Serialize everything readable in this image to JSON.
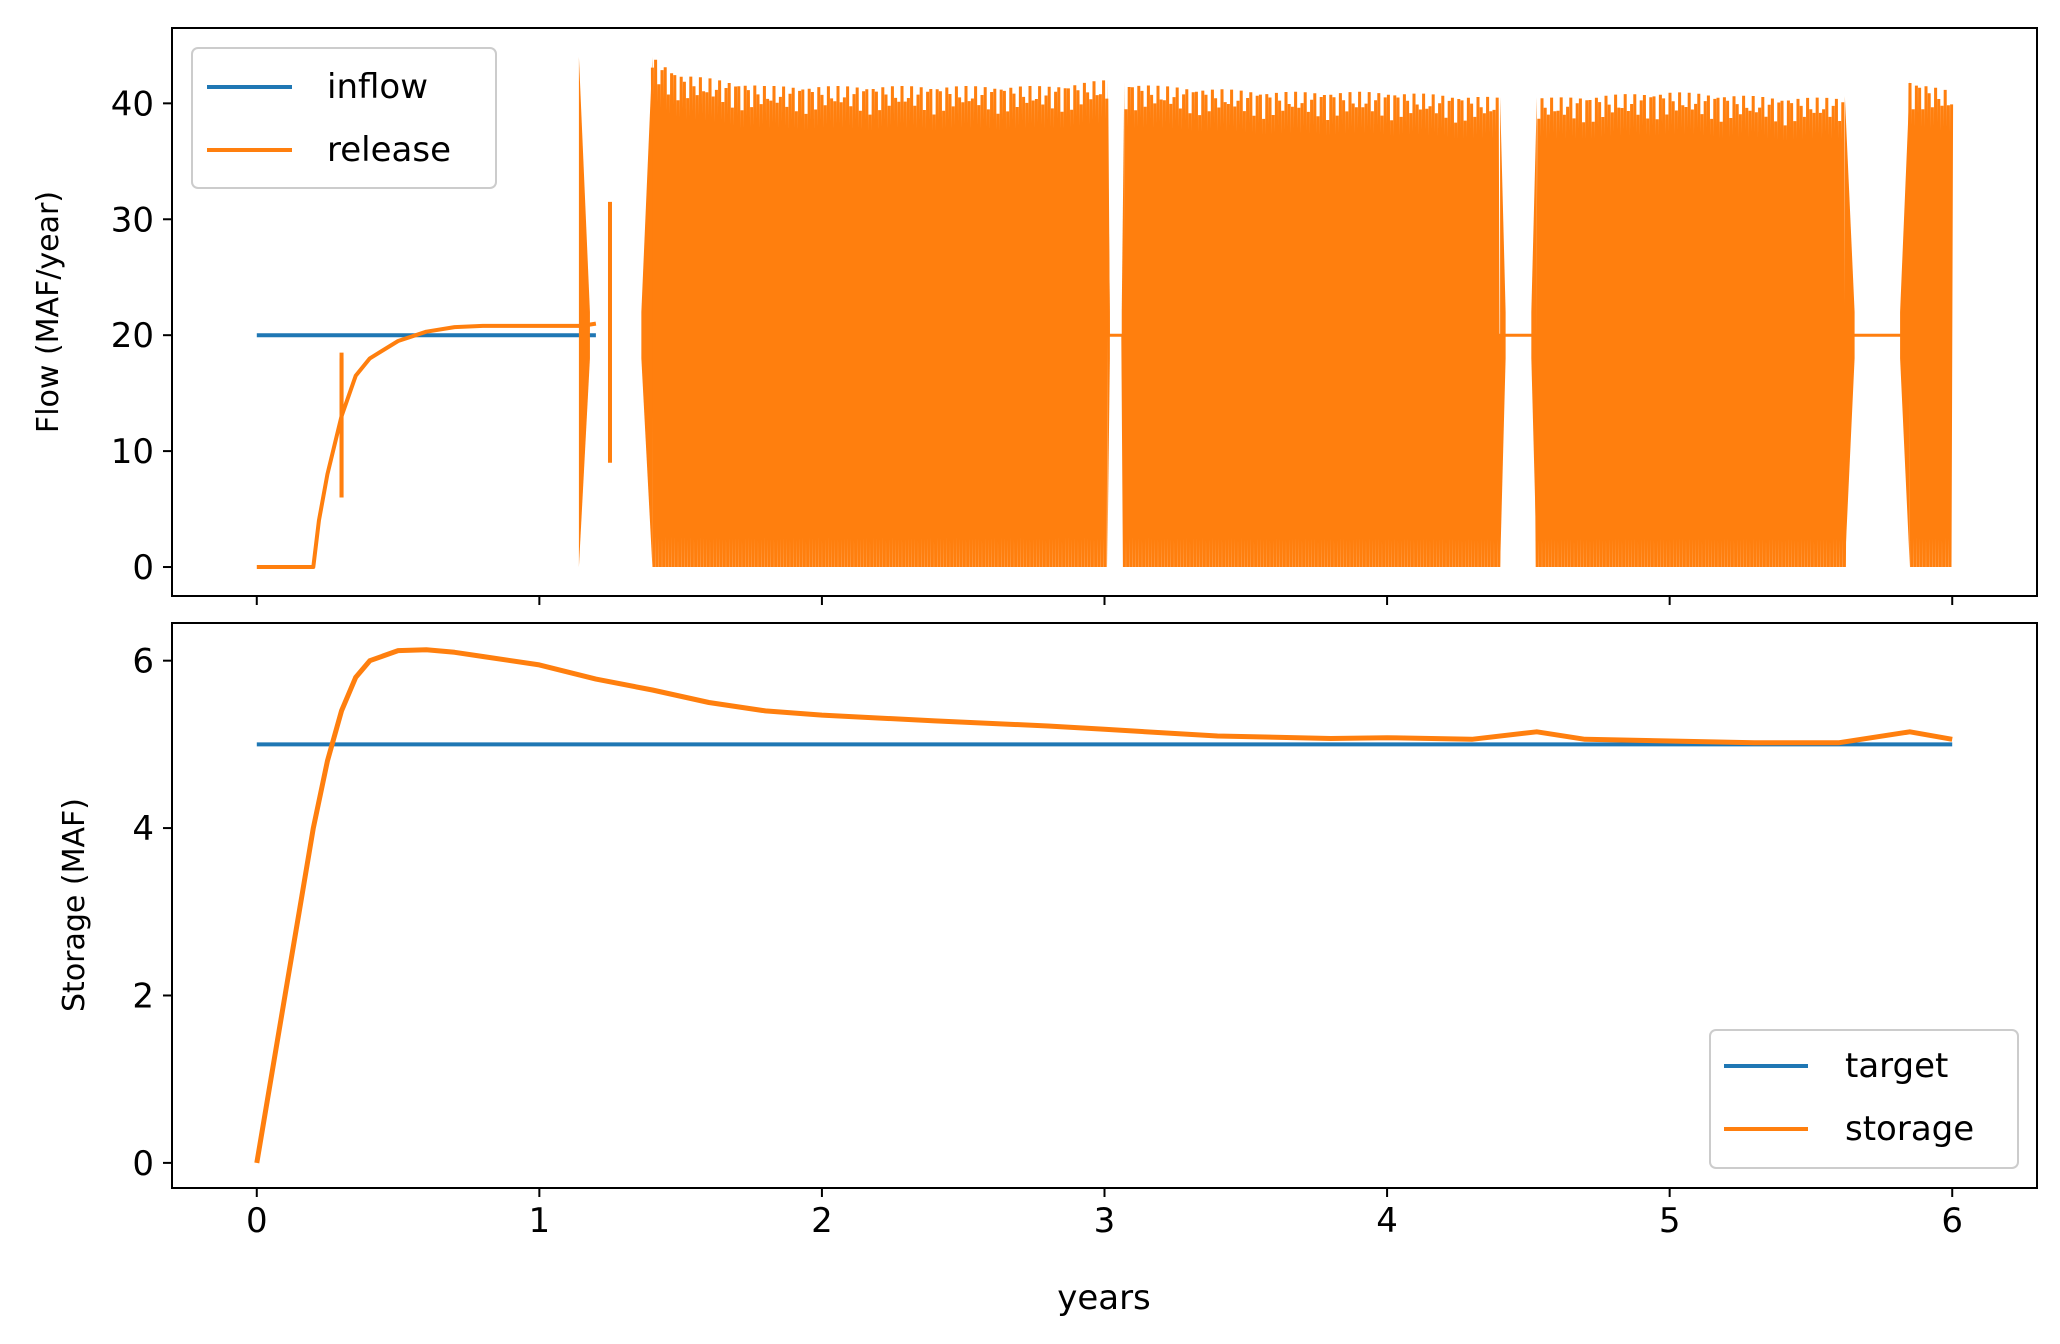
{
  "chart_data": [
    {
      "type": "line",
      "title": "",
      "xlabel": "",
      "ylabel": "Flow (MAF/year)",
      "xlim": [
        -0.3,
        6.3
      ],
      "ylim": [
        -2.5,
        46.5
      ],
      "xticks": [
        0,
        1,
        2,
        3,
        4,
        5,
        6
      ],
      "xticklabels_shown": false,
      "yticks": [
        0,
        10,
        20,
        30,
        40
      ],
      "grid": false,
      "legend": {
        "location": "upper-left",
        "entries": [
          "inflow",
          "release"
        ]
      },
      "series": [
        {
          "name": "inflow",
          "color": "#1f77b4",
          "kind": "line",
          "x": [
            0,
            1.2
          ],
          "y": [
            20,
            20
          ]
        },
        {
          "name": "release",
          "color": "#ff7f0e",
          "kind": "line-then-oscillation",
          "x": [
            0,
            0.2,
            0.22,
            0.25,
            0.3,
            0.35,
            0.4,
            0.5,
            0.6,
            0.7,
            0.8,
            1.0,
            1.15,
            1.2
          ],
          "y": [
            0,
            0,
            4,
            8,
            13,
            16.5,
            18,
            19.5,
            20.3,
            20.7,
            20.8,
            20.8,
            20.8,
            21
          ],
          "oscillation": {
            "x_range": [
              1.4,
              6.0
            ],
            "min": 0,
            "max_envelope": {
              "x": [
                1.4,
                1.5,
                1.8,
                2.0,
                2.4,
                2.8,
                3.0,
                3.2,
                3.6,
                4.0,
                4.4,
                4.6,
                5.0,
                5.4,
                5.6,
                5.85,
                6.0
              ],
              "y": [
                44,
                42.5,
                41.5,
                41.5,
                41.5,
                41.5,
                42,
                41.5,
                41,
                41,
                40.5,
                40.5,
                41,
                40.5,
                40.5,
                42,
                41
              ]
            },
            "gaps": [
              {
                "x": [
                  1.14,
                  1.4
                ],
                "center": 20
              },
              {
                "x": [
                  3.01,
                  3.07
                ],
                "center": 20
              },
              {
                "x": [
                  4.4,
                  4.53
                ],
                "center": 20
              },
              {
                "x": [
                  5.62,
                  5.85
                ],
                "center": 20
              }
            ]
          }
        }
      ]
    },
    {
      "type": "line",
      "title": "",
      "xlabel": "years",
      "ylabel": "Storage (MAF)",
      "xlim": [
        -0.3,
        6.3
      ],
      "ylim": [
        -0.3,
        6.45
      ],
      "xticks": [
        0,
        1,
        2,
        3,
        4,
        5,
        6
      ],
      "yticks": [
        0,
        2,
        4,
        6
      ],
      "grid": false,
      "legend": {
        "location": "lower-right",
        "entries": [
          "target",
          "storage"
        ]
      },
      "series": [
        {
          "name": "target",
          "color": "#1f77b4",
          "x": [
            0,
            6
          ],
          "y": [
            5,
            5
          ]
        },
        {
          "name": "storage",
          "color": "#ff7f0e",
          "x": [
            0,
            0.05,
            0.1,
            0.15,
            0.2,
            0.25,
            0.3,
            0.35,
            0.4,
            0.5,
            0.6,
            0.7,
            0.8,
            1.0,
            1.2,
            1.4,
            1.6,
            1.8,
            2.0,
            2.4,
            2.8,
            3.0,
            3.4,
            3.8,
            4.0,
            4.3,
            4.53,
            4.7,
            5.0,
            5.3,
            5.6,
            5.85,
            6.0
          ],
          "y": [
            0,
            1.0,
            2.0,
            3.0,
            4.0,
            4.8,
            5.4,
            5.8,
            6.0,
            6.12,
            6.13,
            6.1,
            6.05,
            5.95,
            5.78,
            5.65,
            5.5,
            5.4,
            5.35,
            5.28,
            5.22,
            5.18,
            5.1,
            5.07,
            5.08,
            5.06,
            5.15,
            5.06,
            5.04,
            5.02,
            5.02,
            5.15,
            5.06
          ]
        }
      ]
    }
  ]
}
